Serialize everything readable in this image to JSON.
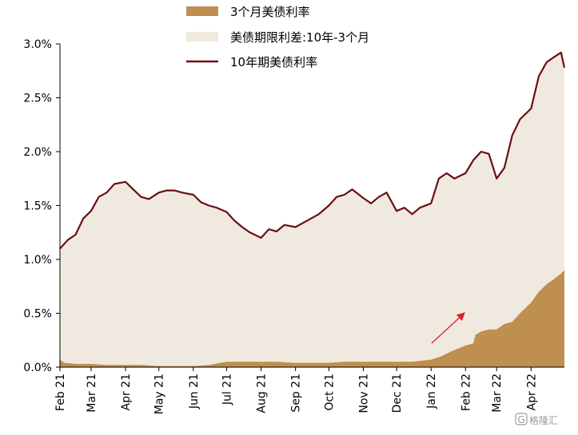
{
  "chart_data": {
    "type": "area",
    "title": "",
    "xlabel": "",
    "ylabel": "",
    "ylim": [
      0,
      3.0
    ],
    "y_ticks": [
      {
        "value": 0.0,
        "label": "0.0%"
      },
      {
        "value": 0.5,
        "label": "0.5%"
      },
      {
        "value": 1.0,
        "label": "1.0%"
      },
      {
        "value": 1.5,
        "label": "1.5%"
      },
      {
        "value": 2.0,
        "label": "2.0%"
      },
      {
        "value": 2.5,
        "label": "2.5%"
      },
      {
        "value": 3.0,
        "label": "3.0%"
      }
    ],
    "x_ticks": [
      "Feb 21",
      "Mar 21",
      "Apr 21",
      "May 21",
      "Jun 21",
      "Jul 21",
      "Aug 21",
      "Sep 21",
      "Oct 21",
      "Nov 21",
      "Dec 21",
      "Jan 22",
      "Feb 22",
      "Mar 22",
      "Apr 22"
    ],
    "legend_position": "top",
    "grid": false,
    "series": [
      {
        "name": "3个月美债利率",
        "kind": "area",
        "color": "#be8f4f",
        "x": [
          "2021-02-01",
          "2021-02-05",
          "2021-02-15",
          "2021-03-01",
          "2021-03-15",
          "2021-04-01",
          "2021-04-15",
          "2021-05-01",
          "2021-05-15",
          "2021-06-01",
          "2021-06-15",
          "2021-07-01",
          "2021-07-15",
          "2021-08-01",
          "2021-08-15",
          "2021-09-01",
          "2021-09-15",
          "2021-10-01",
          "2021-10-15",
          "2021-11-01",
          "2021-11-15",
          "2021-12-01",
          "2021-12-15",
          "2022-01-01",
          "2022-01-10",
          "2022-01-20",
          "2022-02-01",
          "2022-02-08",
          "2022-02-10",
          "2022-02-15",
          "2022-02-22",
          "2022-03-01",
          "2022-03-08",
          "2022-03-15",
          "2022-03-22",
          "2022-04-01",
          "2022-04-08",
          "2022-04-15",
          "2022-04-22",
          "2022-04-28",
          "2022-05-01"
        ],
        "values": [
          0.07,
          0.04,
          0.03,
          0.03,
          0.02,
          0.02,
          0.02,
          0.01,
          0.01,
          0.01,
          0.02,
          0.05,
          0.05,
          0.05,
          0.05,
          0.04,
          0.04,
          0.04,
          0.05,
          0.05,
          0.05,
          0.05,
          0.05,
          0.07,
          0.1,
          0.15,
          0.2,
          0.22,
          0.3,
          0.33,
          0.35,
          0.35,
          0.4,
          0.42,
          0.5,
          0.6,
          0.7,
          0.77,
          0.82,
          0.87,
          0.9
        ]
      },
      {
        "name": "美债期限利差:10年-3个月",
        "kind": "area",
        "color": "#f0e9df"
      },
      {
        "name": "10年期美债利率",
        "kind": "line",
        "color": "#6b0f14",
        "x": [
          "2021-02-01",
          "2021-02-08",
          "2021-02-15",
          "2021-02-22",
          "2021-03-01",
          "2021-03-08",
          "2021-03-15",
          "2021-03-22",
          "2021-04-01",
          "2021-04-08",
          "2021-04-15",
          "2021-04-22",
          "2021-05-01",
          "2021-05-08",
          "2021-05-15",
          "2021-05-22",
          "2021-06-01",
          "2021-06-08",
          "2021-06-15",
          "2021-06-22",
          "2021-07-01",
          "2021-07-08",
          "2021-07-15",
          "2021-07-22",
          "2021-08-01",
          "2021-08-08",
          "2021-08-15",
          "2021-08-22",
          "2021-09-01",
          "2021-09-08",
          "2021-09-15",
          "2021-09-22",
          "2021-10-01",
          "2021-10-08",
          "2021-10-15",
          "2021-10-22",
          "2021-11-01",
          "2021-11-08",
          "2021-11-15",
          "2021-11-22",
          "2021-12-01",
          "2021-12-08",
          "2021-12-15",
          "2021-12-22",
          "2022-01-01",
          "2022-01-08",
          "2022-01-15",
          "2022-01-22",
          "2022-02-01",
          "2022-02-08",
          "2022-02-15",
          "2022-02-22",
          "2022-03-01",
          "2022-03-08",
          "2022-03-15",
          "2022-03-22",
          "2022-04-01",
          "2022-04-08",
          "2022-04-15",
          "2022-04-22",
          "2022-04-28",
          "2022-05-01"
        ],
        "values": [
          1.1,
          1.18,
          1.23,
          1.38,
          1.45,
          1.58,
          1.62,
          1.7,
          1.72,
          1.65,
          1.58,
          1.56,
          1.62,
          1.64,
          1.64,
          1.62,
          1.6,
          1.53,
          1.5,
          1.48,
          1.44,
          1.36,
          1.3,
          1.25,
          1.2,
          1.28,
          1.26,
          1.32,
          1.3,
          1.34,
          1.38,
          1.42,
          1.5,
          1.58,
          1.6,
          1.65,
          1.57,
          1.52,
          1.58,
          1.62,
          1.45,
          1.48,
          1.42,
          1.48,
          1.52,
          1.75,
          1.8,
          1.75,
          1.8,
          1.92,
          2.0,
          1.98,
          1.75,
          1.85,
          2.15,
          2.3,
          2.4,
          2.7,
          2.83,
          2.88,
          2.92,
          2.78
        ]
      }
    ]
  },
  "watermark": {
    "glyph": "G",
    "text": "格隆汇"
  }
}
